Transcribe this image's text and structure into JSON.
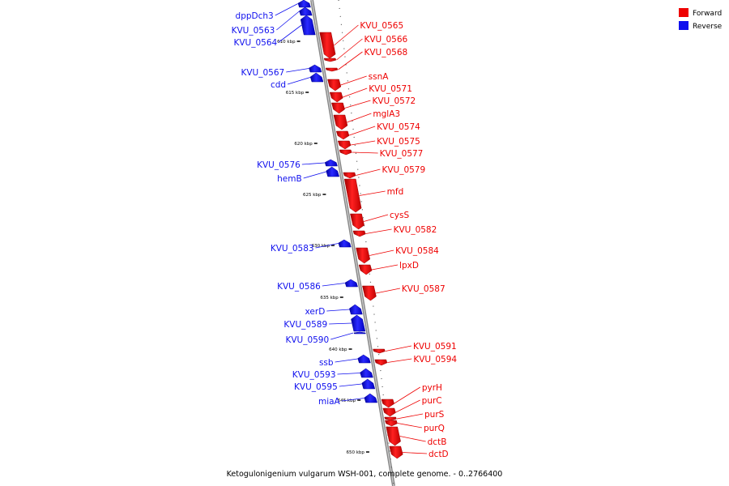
{
  "caption": "Ketogulonigenium vulgarum WSH-001, complete genome. - 0..2766400",
  "legend": [
    {
      "label": "Forward",
      "color": "#ee0000"
    },
    {
      "label": "Reverse",
      "color": "#1010ee"
    }
  ],
  "ticks": [
    "610 kbp",
    "615 kbp",
    "620 kbp",
    "625 kbp",
    "630 kbp",
    "635 kbp",
    "640 kbp",
    "645 kbp",
    "650 kbp"
  ],
  "genes": {
    "reverse": [
      "dppDch3",
      "KVU_0563",
      "KVU_0564",
      "KVU_0567",
      "cdd",
      "KVU_0576",
      "hemB",
      "KVU_0583",
      "KVU_0586",
      "xerD",
      "KVU_0589",
      "KVU_0590",
      "ssb",
      "KVU_0593",
      "KVU_0595",
      "miaA"
    ],
    "forward": [
      "KVU_0565",
      "KVU_0566",
      "KVU_0568",
      "ssnA",
      "KVU_0571",
      "KVU_0572",
      "mglA3",
      "KVU_0574",
      "KVU_0575",
      "KVU_0577",
      "KVU_0579",
      "mfd",
      "cysS",
      "KVU_0582",
      "KVU_0584",
      "lpxD",
      "KVU_0587",
      "KVU_0591",
      "KVU_0594",
      "pyrH",
      "purC",
      "purS",
      "purQ",
      "dctB",
      "dctD"
    ]
  }
}
